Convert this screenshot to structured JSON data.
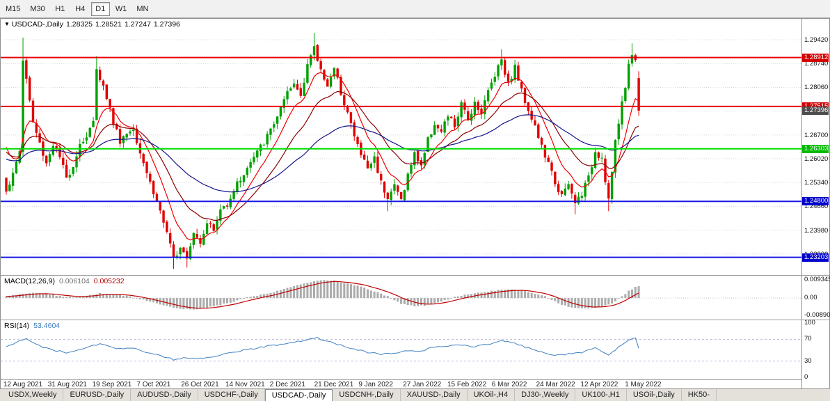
{
  "toolbar": {
    "periods": [
      {
        "label": "M15",
        "active": false
      },
      {
        "label": "M30",
        "active": false
      },
      {
        "label": "H1",
        "active": false
      },
      {
        "label": "H4",
        "active": false
      },
      {
        "label": "D1",
        "active": true
      },
      {
        "label": "W1",
        "active": false
      },
      {
        "label": "MN",
        "active": false
      }
    ]
  },
  "chart_header": {
    "symbol": "USDCAD-,Daily",
    "open": "1.28325",
    "high": "1.28521",
    "low": "1.27247",
    "close": "1.27396"
  },
  "price_axis": {
    "ticks": [
      "1.29420",
      "1.28740",
      "1.28060",
      "1.27380",
      "1.26700",
      "1.26020",
      "1.25340",
      "1.24660",
      "1.23980",
      "1.23300"
    ]
  },
  "levels": [
    {
      "price": 1.28912,
      "label": "1.28912",
      "color": "#E80000",
      "badge_bg": "#D40000",
      "badge_fg": "#FFFFFF"
    },
    {
      "price": 1.27515,
      "label": "1.27515",
      "color": "#E80000",
      "badge_bg": "#D40000",
      "badge_fg": "#FFFFFF"
    },
    {
      "price": 1.26303,
      "label": "1.26303",
      "color": "#00DD00",
      "badge_bg": "#00BB00",
      "badge_fg": "#FFFFFF"
    },
    {
      "price": 1.248,
      "label": "1.24800",
      "color": "#1414E8",
      "badge_bg": "#0000CC",
      "badge_fg": "#FFFFFF"
    },
    {
      "price": 1.23203,
      "label": "1.23203",
      "color": "#1414E8",
      "badge_bg": "#0000CC",
      "badge_fg": "#FFFFFF"
    }
  ],
  "current_price": {
    "label": "1.27396",
    "price": 1.27396,
    "badge_bg": "#4D4D4D",
    "badge_fg": "#FFFFFF"
  },
  "indicators": {
    "macd": {
      "name": "MACD(12,26,9)",
      "value": "0.006104",
      "signal": "0.005232",
      "axis_ticks": [
        "0.009345",
        "0.00",
        "-0.00890"
      ],
      "histogram_color": "#ABABAB",
      "signal_color": "#C00000"
    },
    "rsi": {
      "name": "RSI(14)",
      "value": "53.4604",
      "axis_ticks": [
        "100",
        "70",
        "30",
        "0"
      ],
      "line_color": "#3E7FC1",
      "level_high": 70,
      "level_low": 30
    }
  },
  "date_axis": [
    "12 Aug 2021",
    "31 Aug 2021",
    "19 Sep 2021",
    "7 Oct 2021",
    "26 Oct 2021",
    "14 Nov 2021",
    "2 Dec 2021",
    "21 Dec 2021",
    "9 Jan 2022",
    "27 Jan 2022",
    "15 Feb 2022",
    "6 Mar 2022",
    "24 Mar 2022",
    "12 Apr 2022",
    "1 May 2022"
  ],
  "tabs": [
    {
      "label": "USDX,Weekly",
      "active": false
    },
    {
      "label": "EURUSD-,Daily",
      "active": false
    },
    {
      "label": "AUDUSD-,Daily",
      "active": false
    },
    {
      "label": "USDCHF-,Daily",
      "active": false
    },
    {
      "label": "USDCAD-,Daily",
      "active": true
    },
    {
      "label": "USDCNH-,Daily",
      "active": false
    },
    {
      "label": "XAUUSD-,Daily",
      "active": false
    },
    {
      "label": "UKOil-,H4",
      "active": false
    },
    {
      "label": "DJ30-,Weekly",
      "active": false
    },
    {
      "label": "UK100-,H1",
      "active": false
    },
    {
      "label": "USOil-,Daily",
      "active": false
    },
    {
      "label": "HK50-",
      "active": false
    }
  ],
  "chart_data": {
    "type": "candlestick",
    "title": "USDCAD-,Daily",
    "timeframe": "D1",
    "visible_price_range": [
      1.227,
      1.3002
    ],
    "candle_count": 190,
    "seed": 1337,
    "close_noise": 0.0022,
    "gap_noise": 0.0008,
    "wick_noise": 0.0016,
    "colors": {
      "up": "#00A000",
      "down": "#E00000"
    },
    "last_candle": {
      "open": 1.28325,
      "high": 1.28521,
      "low": 1.27247,
      "close": 1.27396
    },
    "price_path_anchors": [
      [
        0,
        1.2515
      ],
      [
        2,
        1.2555
      ],
      [
        4,
        1.2625
      ],
      [
        5,
        1.2885
      ],
      [
        6,
        1.283
      ],
      [
        8,
        1.2705
      ],
      [
        10,
        1.2645
      ],
      [
        12,
        1.259
      ],
      [
        14,
        1.2645
      ],
      [
        16,
        1.2605
      ],
      [
        18,
        1.2545
      ],
      [
        20,
        1.2585
      ],
      [
        22,
        1.2645
      ],
      [
        24,
        1.2665
      ],
      [
        26,
        1.2705
      ],
      [
        27,
        1.2865
      ],
      [
        28,
        1.2835
      ],
      [
        30,
        1.278
      ],
      [
        32,
        1.2705
      ],
      [
        34,
        1.2655
      ],
      [
        36,
        1.2675
      ],
      [
        38,
        1.269
      ],
      [
        40,
        1.2625
      ],
      [
        42,
        1.2565
      ],
      [
        44,
        1.2505
      ],
      [
        46,
        1.2455
      ],
      [
        48,
        1.2385
      ],
      [
        50,
        1.2315
      ],
      [
        52,
        1.2355
      ],
      [
        54,
        1.2325
      ],
      [
        56,
        1.2395
      ],
      [
        58,
        1.2365
      ],
      [
        60,
        1.2425
      ],
      [
        62,
        1.2395
      ],
      [
        64,
        1.2455
      ],
      [
        66,
        1.2475
      ],
      [
        68,
        1.2515
      ],
      [
        70,
        1.2545
      ],
      [
        72,
        1.2575
      ],
      [
        74,
        1.2605
      ],
      [
        76,
        1.2635
      ],
      [
        78,
        1.2665
      ],
      [
        80,
        1.2705
      ],
      [
        82,
        1.2745
      ],
      [
        84,
        1.2785
      ],
      [
        86,
        1.2815
      ],
      [
        88,
        1.2785
      ],
      [
        90,
        1.2875
      ],
      [
        92,
        1.2915
      ],
      [
        94,
        1.2855
      ],
      [
        96,
        1.2815
      ],
      [
        98,
        1.2855
      ],
      [
        100,
        1.2795
      ],
      [
        102,
        1.2735
      ],
      [
        104,
        1.2665
      ],
      [
        106,
        1.2615
      ],
      [
        108,
        1.2575
      ],
      [
        110,
        1.2605
      ],
      [
        112,
        1.2535
      ],
      [
        114,
        1.2495
      ],
      [
        116,
        1.2525
      ],
      [
        118,
        1.2485
      ],
      [
        120,
        1.2555
      ],
      [
        122,
        1.2615
      ],
      [
        124,
        1.2585
      ],
      [
        126,
        1.2655
      ],
      [
        128,
        1.2705
      ],
      [
        130,
        1.2675
      ],
      [
        132,
        1.2725
      ],
      [
        134,
        1.2695
      ],
      [
        136,
        1.2755
      ],
      [
        138,
        1.2715
      ],
      [
        140,
        1.2765
      ],
      [
        142,
        1.2735
      ],
      [
        144,
        1.2795
      ],
      [
        146,
        1.2845
      ],
      [
        148,
        1.289
      ],
      [
        150,
        1.2815
      ],
      [
        152,
        1.2865
      ],
      [
        154,
        1.2795
      ],
      [
        156,
        1.2745
      ],
      [
        158,
        1.2695
      ],
      [
        160,
        1.2635
      ],
      [
        162,
        1.2585
      ],
      [
        164,
        1.2535
      ],
      [
        166,
        1.2495
      ],
      [
        168,
        1.2525
      ],
      [
        170,
        1.2475
      ],
      [
        172,
        1.2505
      ],
      [
        174,
        1.2545
      ],
      [
        176,
        1.2625
      ],
      [
        178,
        1.2605
      ],
      [
        180,
        1.2485
      ],
      [
        182,
        1.2645
      ],
      [
        184,
        1.2765
      ],
      [
        186,
        1.2865
      ],
      [
        187,
        1.2905
      ],
      [
        188,
        1.2885
      ],
      [
        189,
        1.27396
      ]
    ],
    "spikes": [
      {
        "i": 5,
        "high": 1.2948
      },
      {
        "i": 27,
        "high": 1.2895
      },
      {
        "i": 50,
        "low": 1.2287
      },
      {
        "i": 54,
        "low": 1.2291
      },
      {
        "i": 92,
        "high": 1.2962
      },
      {
        "i": 114,
        "low": 1.2452
      },
      {
        "i": 148,
        "high": 1.2915
      },
      {
        "i": 170,
        "low": 1.2443
      },
      {
        "i": 180,
        "low": 1.2452
      },
      {
        "i": 187,
        "high": 1.2932
      }
    ],
    "moving_averages": [
      {
        "period": 9,
        "color": "#F00000"
      },
      {
        "period": 21,
        "color": "#8B0000"
      },
      {
        "period": 55,
        "color": "#14148C"
      }
    ],
    "macd": {
      "signal_period": 9,
      "range": [
        -0.0089,
        0.009345
      ],
      "noise": 0.0005,
      "anchors": [
        [
          0,
          0.0008
        ],
        [
          4,
          0.0018
        ],
        [
          8,
          0.0028
        ],
        [
          12,
          0.0022
        ],
        [
          16,
          0.001
        ],
        [
          20,
          0.0004
        ],
        [
          24,
          0.001
        ],
        [
          28,
          0.0024
        ],
        [
          32,
          0.002
        ],
        [
          36,
          0.0012
        ],
        [
          40,
          -0.0006
        ],
        [
          44,
          -0.0022
        ],
        [
          48,
          -0.0042
        ],
        [
          52,
          -0.0055
        ],
        [
          56,
          -0.006
        ],
        [
          60,
          -0.005
        ],
        [
          64,
          -0.0035
        ],
        [
          68,
          -0.0018
        ],
        [
          72,
          0.0002
        ],
        [
          76,
          0.0016
        ],
        [
          80,
          0.0032
        ],
        [
          84,
          0.0052
        ],
        [
          88,
          0.007
        ],
        [
          92,
          0.0086
        ],
        [
          95,
          0.0093
        ],
        [
          98,
          0.0088
        ],
        [
          102,
          0.0074
        ],
        [
          106,
          0.0058
        ],
        [
          110,
          0.0034
        ],
        [
          114,
          0.0008
        ],
        [
          118,
          -0.003
        ],
        [
          122,
          -0.0042
        ],
        [
          126,
          -0.0036
        ],
        [
          130,
          -0.0018
        ],
        [
          134,
          0.0006
        ],
        [
          138,
          0.002
        ],
        [
          142,
          0.003
        ],
        [
          146,
          0.0038
        ],
        [
          150,
          0.0044
        ],
        [
          154,
          0.004
        ],
        [
          158,
          0.0024
        ],
        [
          162,
          0.0002
        ],
        [
          166,
          -0.0035
        ],
        [
          170,
          -0.0052
        ],
        [
          174,
          -0.0055
        ],
        [
          178,
          -0.0042
        ],
        [
          180,
          -0.0035
        ],
        [
          182,
          -0.0018
        ],
        [
          184,
          0.0008
        ],
        [
          186,
          0.0036
        ],
        [
          188,
          0.0056
        ],
        [
          189,
          0.006104
        ]
      ]
    },
    "rsi": {
      "range": [
        0,
        100
      ],
      "noise": 3,
      "anchors": [
        [
          0,
          55
        ],
        [
          4,
          68
        ],
        [
          6,
          72
        ],
        [
          10,
          58
        ],
        [
          14,
          50
        ],
        [
          18,
          46
        ],
        [
          22,
          52
        ],
        [
          26,
          58
        ],
        [
          28,
          63
        ],
        [
          30,
          60
        ],
        [
          34,
          52
        ],
        [
          38,
          55
        ],
        [
          42,
          46
        ],
        [
          46,
          40
        ],
        [
          50,
          33
        ],
        [
          54,
          36
        ],
        [
          58,
          34
        ],
        [
          62,
          38
        ],
        [
          66,
          45
        ],
        [
          70,
          49
        ],
        [
          74,
          53
        ],
        [
          78,
          57
        ],
        [
          82,
          61
        ],
        [
          86,
          64
        ],
        [
          90,
          70
        ],
        [
          93,
          73
        ],
        [
          96,
          66
        ],
        [
          100,
          60
        ],
        [
          104,
          52
        ],
        [
          108,
          46
        ],
        [
          112,
          42
        ],
        [
          116,
          44
        ],
        [
          120,
          50
        ],
        [
          124,
          48
        ],
        [
          128,
          56
        ],
        [
          132,
          58
        ],
        [
          136,
          60
        ],
        [
          140,
          57
        ],
        [
          144,
          61
        ],
        [
          148,
          67
        ],
        [
          152,
          63
        ],
        [
          156,
          54
        ],
        [
          160,
          47
        ],
        [
          164,
          41
        ],
        [
          168,
          43
        ],
        [
          172,
          46
        ],
        [
          176,
          55
        ],
        [
          180,
          41
        ],
        [
          184,
          60
        ],
        [
          186,
          68
        ],
        [
          188,
          72
        ],
        [
          189,
          53.5
        ]
      ]
    }
  }
}
